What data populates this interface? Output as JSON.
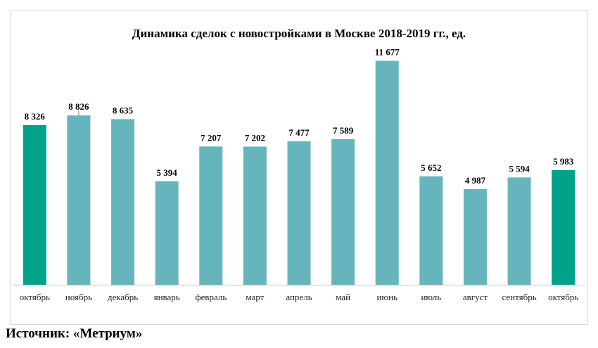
{
  "chart_data": {
    "type": "bar",
    "title": "Динамика сделок с новостройками в Москве 2018-2019 гг., ед.",
    "categories": [
      "октябрь",
      "ноябрь",
      "декабрь",
      "январь",
      "февраль",
      "март",
      "апрель",
      "май",
      "июнь",
      "июль",
      "август",
      "сентябрь",
      "октябрь"
    ],
    "values": [
      8326,
      8826,
      8635,
      5394,
      7207,
      7202,
      7477,
      7589,
      11677,
      5652,
      4987,
      5594,
      5983
    ],
    "value_labels": [
      "8 326",
      "8 826",
      "8 635",
      "5 394",
      "7 207",
      "7 202",
      "7 477",
      "7 589",
      "11 677",
      "5 652",
      "4 987",
      "5 594",
      "5 983"
    ],
    "highlighted": [
      0,
      12
    ],
    "colors": {
      "bar": "#66b5bd",
      "highlight": "#00a38a",
      "axis": "#bfbfbf"
    },
    "ylim": [
      0,
      12500
    ],
    "grid": false,
    "legend": "none",
    "xlabel": "",
    "ylabel": ""
  },
  "source": "Источник: «Метриум»"
}
